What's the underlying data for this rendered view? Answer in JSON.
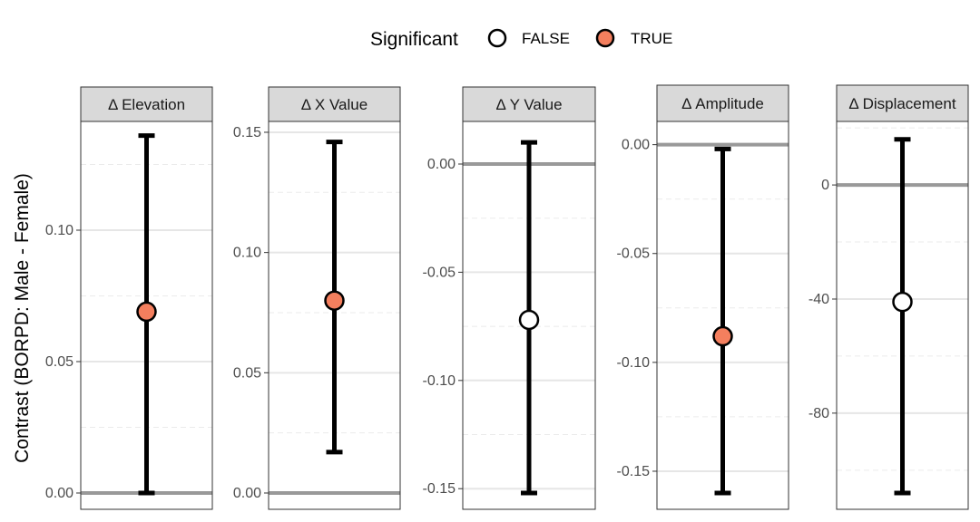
{
  "colors": {
    "significant_true": "#f47f5e",
    "significant_false": "#ffffff",
    "strip_fill": "#d9d9d9",
    "zero_line": "#999999"
  },
  "legend": {
    "title": "Significant",
    "entries": [
      {
        "label": "FALSE",
        "fill": "#ffffff"
      },
      {
        "label": "TRUE",
        "fill": "#f47f5e"
      }
    ]
  },
  "chart_data": {
    "type": "scatter",
    "ylabel": "Contrast (BORPD: Male - Female)",
    "panels": [
      {
        "title": "Δ Elevation",
        "ylim": [
          0,
          0.14
        ],
        "ticks": [
          0.0,
          0.05,
          0.1
        ],
        "tick_labels": [
          "0.00",
          "0.05",
          "0.10"
        ],
        "estimate": 0.069,
        "lower": 0.0,
        "upper": 0.136,
        "significant": true
      },
      {
        "title": "Δ X Value",
        "ylim": [
          0,
          0.153
        ],
        "ticks": [
          0.0,
          0.05,
          0.1,
          0.15
        ],
        "tick_labels": [
          "0.00",
          "0.05",
          "0.10",
          "0.15"
        ],
        "estimate": 0.08,
        "lower": 0.017,
        "upper": 0.146,
        "significant": true
      },
      {
        "title": "Δ Y Value",
        "ylim": [
          -0.152,
          0.018
        ],
        "ticks": [
          0.0,
          -0.05,
          -0.1,
          -0.15
        ],
        "tick_labels": [
          "0.00",
          "-0.05",
          "-0.10",
          "-0.15"
        ],
        "estimate": -0.072,
        "lower": -0.152,
        "upper": 0.01,
        "significant": false
      },
      {
        "title": "Δ Amplitude",
        "ylim": [
          -0.16,
          0.009
        ],
        "ticks": [
          0.0,
          -0.05,
          -0.1,
          -0.15
        ],
        "tick_labels": [
          "0.00",
          "-0.05",
          "-0.10",
          "-0.15"
        ],
        "estimate": -0.088,
        "lower": -0.16,
        "upper": -0.002,
        "significant": true
      },
      {
        "title": "Δ Displacement",
        "ylim": [
          -108,
          21
        ],
        "ticks": [
          0,
          -40,
          -80
        ],
        "tick_labels": [
          "0",
          "-40",
          "-80"
        ],
        "estimate": -41,
        "lower": -108,
        "upper": 16,
        "significant": false
      }
    ]
  }
}
